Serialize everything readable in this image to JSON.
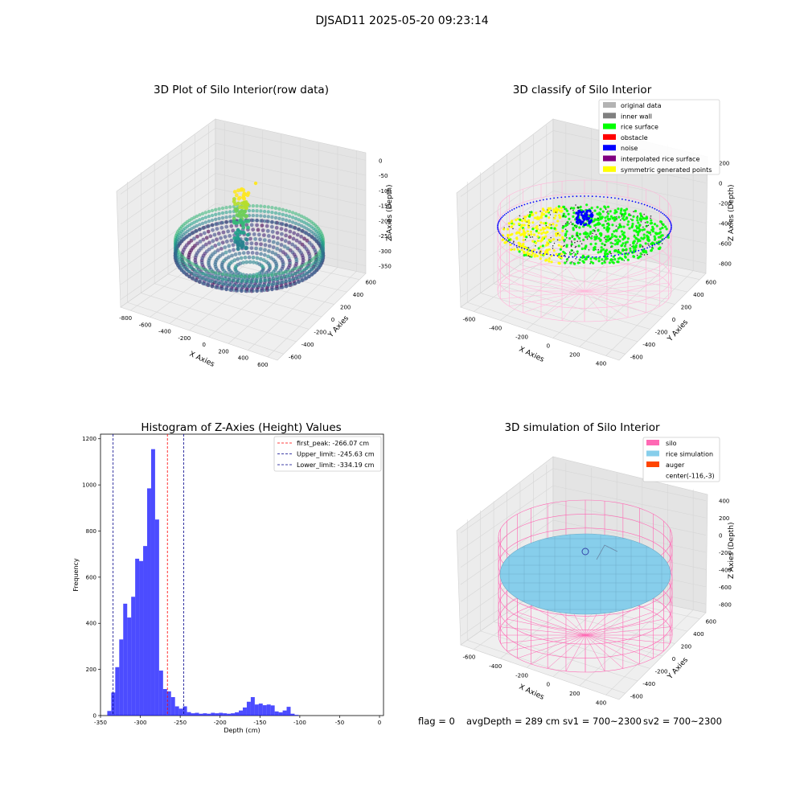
{
  "suptitle": "DJSAD11 2025-05-20 09:23:14",
  "chart_data": [
    {
      "type": "scatter3d",
      "title": "3D Plot of Silo Interior(row data)",
      "xlabel": "X Axies",
      "ylabel": "Y Axies",
      "zlabel": "Z Axies (Depth)",
      "x_ticks": [
        "-800",
        "-600",
        "-400",
        "-200",
        "0",
        "200",
        "400",
        "600"
      ],
      "y_ticks": [
        "-600",
        "-400",
        "-200",
        "0",
        "200",
        "400",
        "600"
      ],
      "z_ticks": [
        "0",
        "-50",
        "-100",
        "-150",
        "-200",
        "-250",
        "-300",
        "-350"
      ],
      "colormap": "viridis",
      "grid": true
    },
    {
      "type": "scatter3d",
      "title": "3D classify of Silo Interior",
      "xlabel": "X Axies",
      "ylabel": "Y Axies",
      "zlabel": "Z Axies (Depth)",
      "x_ticks": [
        "-600",
        "-400",
        "-200",
        "0",
        "200",
        "400"
      ],
      "y_ticks": [
        "-600",
        "-400",
        "-200",
        "0",
        "200",
        "400",
        "600"
      ],
      "z_ticks": [
        "200",
        "0",
        "-200",
        "-400",
        "-600",
        "-800"
      ],
      "legend_position": "top-right",
      "legend": [
        {
          "label": "original data",
          "color": "#b3b3b3"
        },
        {
          "label": "inner wall",
          "color": "#808080"
        },
        {
          "label": "rice surface",
          "color": "#00ff00"
        },
        {
          "label": "obstacle",
          "color": "#ff0000"
        },
        {
          "label": "noise",
          "color": "#0000ff"
        },
        {
          "label": "interpolated rice surface",
          "color": "#800080"
        },
        {
          "label": "symmetric generated points",
          "color": "#ffff00"
        }
      ],
      "grid": true
    },
    {
      "type": "bar",
      "title": "Histogram of Z-Axies (Height) Values",
      "xlabel": "Depth (cm)",
      "ylabel": "Frequency",
      "xlim": [
        -350,
        5
      ],
      "ylim": [
        0,
        1220
      ],
      "x_ticks": [
        "-350",
        "-300",
        "-250",
        "-200",
        "-150",
        "-100",
        "-50",
        "0"
      ],
      "y_ticks": [
        "0",
        "200",
        "400",
        "600",
        "800",
        "1000",
        "1200"
      ],
      "bar_color": "#0000ff",
      "bins": [
        {
          "x0": -341.5,
          "x1": -336.5,
          "v": 20
        },
        {
          "x0": -336.5,
          "x1": -331.5,
          "v": 100
        },
        {
          "x0": -331.5,
          "x1": -326.5,
          "v": 210
        },
        {
          "x0": -326.5,
          "x1": -321.5,
          "v": 330
        },
        {
          "x0": -321.5,
          "x1": -316.5,
          "v": 485
        },
        {
          "x0": -316.5,
          "x1": -311.5,
          "v": 425
        },
        {
          "x0": -311.5,
          "x1": -306.5,
          "v": 515
        },
        {
          "x0": -306.5,
          "x1": -301.5,
          "v": 680
        },
        {
          "x0": -301.5,
          "x1": -296.5,
          "v": 670
        },
        {
          "x0": -296.5,
          "x1": -291.5,
          "v": 735
        },
        {
          "x0": -291.5,
          "x1": -286.5,
          "v": 985
        },
        {
          "x0": -286.5,
          "x1": -281.5,
          "v": 1155
        },
        {
          "x0": -281.5,
          "x1": -276.5,
          "v": 850
        },
        {
          "x0": -276.5,
          "x1": -271.5,
          "v": 195
        },
        {
          "x0": -271.5,
          "x1": -266.5,
          "v": 115
        },
        {
          "x0": -266.5,
          "x1": -261.5,
          "v": 105
        },
        {
          "x0": -261.5,
          "x1": -256.5,
          "v": 80
        },
        {
          "x0": -256.5,
          "x1": -251.5,
          "v": 40
        },
        {
          "x0": -251.5,
          "x1": -246.5,
          "v": 30
        },
        {
          "x0": -246.5,
          "x1": -241.5,
          "v": 40
        },
        {
          "x0": -241.5,
          "x1": -236.5,
          "v": 15
        },
        {
          "x0": -236.5,
          "x1": -231.5,
          "v": 10
        },
        {
          "x0": -231.5,
          "x1": -226.5,
          "v": 12
        },
        {
          "x0": -226.5,
          "x1": -221.5,
          "v": 8
        },
        {
          "x0": -221.5,
          "x1": -216.5,
          "v": 10
        },
        {
          "x0": -216.5,
          "x1": -211.5,
          "v": 8
        },
        {
          "x0": -211.5,
          "x1": -206.5,
          "v": 12
        },
        {
          "x0": -206.5,
          "x1": -201.5,
          "v": 10
        },
        {
          "x0": -201.5,
          "x1": -196.5,
          "v": 12
        },
        {
          "x0": -196.5,
          "x1": -191.5,
          "v": 10
        },
        {
          "x0": -191.5,
          "x1": -186.5,
          "v": 8
        },
        {
          "x0": -186.5,
          "x1": -181.5,
          "v": 10
        },
        {
          "x0": -181.5,
          "x1": -176.5,
          "v": 14
        },
        {
          "x0": -176.5,
          "x1": -171.5,
          "v": 22
        },
        {
          "x0": -171.5,
          "x1": -166.5,
          "v": 35
        },
        {
          "x0": -166.5,
          "x1": -161.5,
          "v": 60
        },
        {
          "x0": -161.5,
          "x1": -156.5,
          "v": 80
        },
        {
          "x0": -156.5,
          "x1": -151.5,
          "v": 48
        },
        {
          "x0": -151.5,
          "x1": -146.5,
          "v": 52
        },
        {
          "x0": -146.5,
          "x1": -141.5,
          "v": 45
        },
        {
          "x0": -141.5,
          "x1": -136.5,
          "v": 48
        },
        {
          "x0": -136.5,
          "x1": -131.5,
          "v": 44
        },
        {
          "x0": -131.5,
          "x1": -126.5,
          "v": 18
        },
        {
          "x0": -126.5,
          "x1": -121.5,
          "v": 14
        },
        {
          "x0": -121.5,
          "x1": -116.5,
          "v": 22
        },
        {
          "x0": -116.5,
          "x1": -111.5,
          "v": 38
        },
        {
          "x0": -111.5,
          "x1": -106.5,
          "v": 8
        },
        {
          "x0": -106.5,
          "x1": -101.5,
          "v": 3
        }
      ],
      "vlines": [
        {
          "label": "first_peak: -266.07 cm",
          "x": -266.07,
          "color": "#ff0000"
        },
        {
          "label": "Upper_limit: -245.63 cm",
          "x": -245.63,
          "color": "#00008b"
        },
        {
          "label": "Lower_limit: -334.19 cm",
          "x": -334.19,
          "color": "#00008b"
        }
      ],
      "legend_position": "top-right"
    },
    {
      "type": "surface3d",
      "title": "3D simulation of Silo Interior",
      "xlabel": "X Axies",
      "ylabel": "Y Axies",
      "zlabel": "Z Axies (Depth)",
      "x_ticks": [
        "-600",
        "-400",
        "-200",
        "0",
        "200",
        "400"
      ],
      "y_ticks": [
        "-600",
        "-400",
        "-200",
        "0",
        "200",
        "400",
        "600"
      ],
      "z_ticks": [
        "400",
        "200",
        "0",
        "-200",
        "-400",
        "-600",
        "-800"
      ],
      "legend_position": "top-right",
      "legend": [
        {
          "label": "silo",
          "color": "#ff69b4"
        },
        {
          "label": "rice simulation",
          "color": "#87ceeb"
        },
        {
          "label": "auger",
          "color": "#ff4500"
        },
        {
          "label": "center(-116,-3)",
          "color": ""
        }
      ],
      "grid": true
    }
  ],
  "status_line": {
    "flag": "flag = 0",
    "avg_depth": "avgDepth = 289 cm",
    "sv1": "sv1 = 700~2300",
    "sv2": "sv2 = 700~2300"
  }
}
